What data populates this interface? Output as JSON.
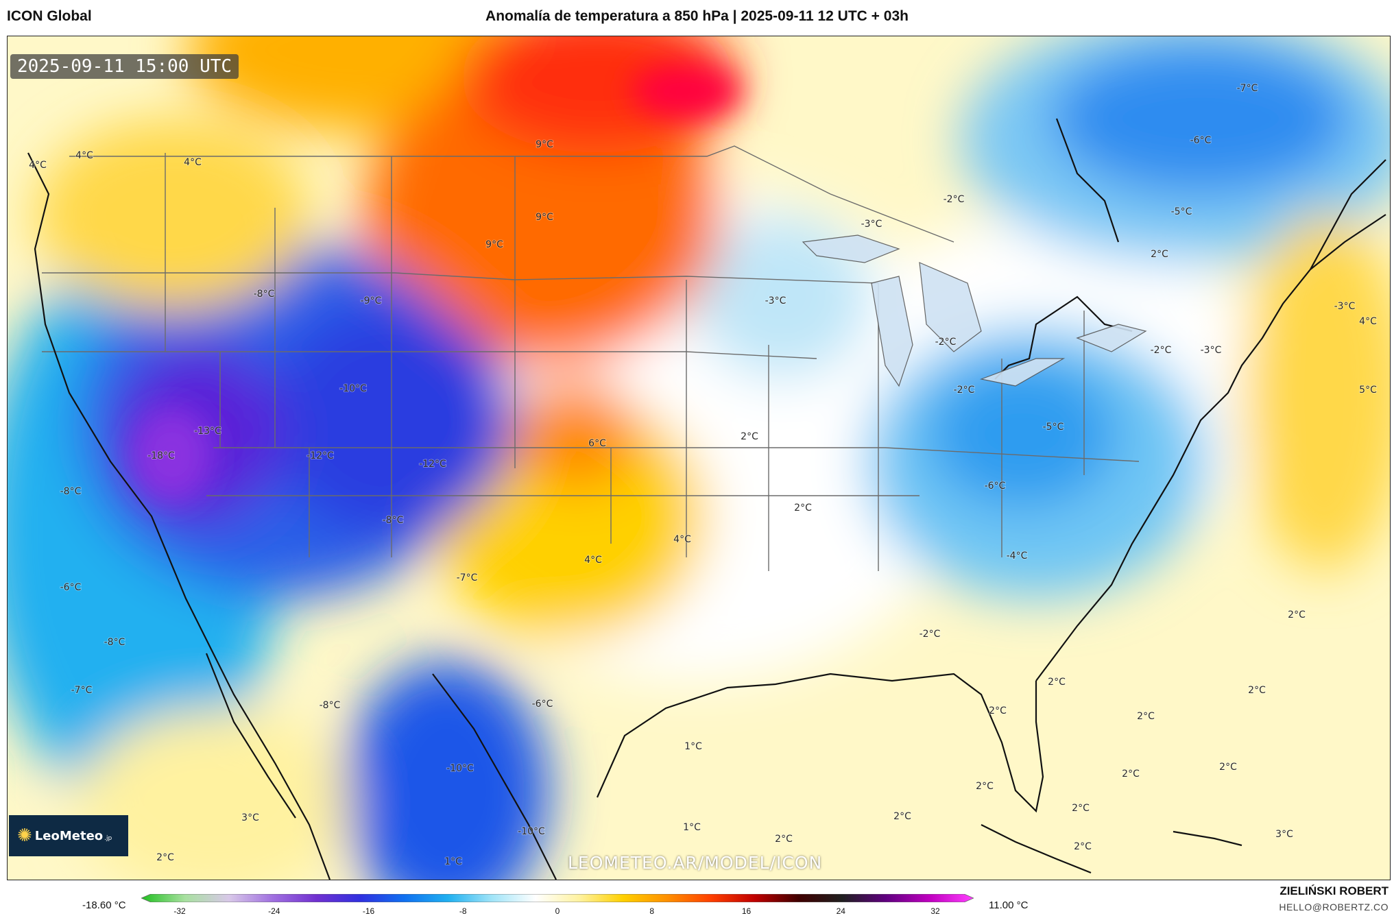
{
  "header": {
    "model": "ICON Global",
    "title": "Anomalía de temperatura a 850 hPa | 2025-09-11 12 UTC + 03h"
  },
  "map": {
    "timestamp": "2025-09-11 15:00 UTC",
    "logo": "LeoMeteo",
    "logo_suffix": ".jp",
    "watermark": "LEOMETEO.AR/MODEL/ICON",
    "labels": [
      {
        "text": "9°C"
      },
      {
        "text": "9°C"
      },
      {
        "text": "9°C"
      },
      {
        "text": "4°C"
      },
      {
        "text": "4°C"
      },
      {
        "text": "4°C"
      },
      {
        "text": "-8°C"
      },
      {
        "text": "-9°C"
      },
      {
        "text": "-10°C"
      },
      {
        "text": "-13°C"
      },
      {
        "text": "-18°C"
      },
      {
        "text": "-12°C"
      },
      {
        "text": "-12°C"
      },
      {
        "text": "-8°C"
      },
      {
        "text": "-8°C"
      },
      {
        "text": "-6°C"
      },
      {
        "text": "-8°C"
      },
      {
        "text": "-7°C"
      },
      {
        "text": "-7°C"
      },
      {
        "text": "-6°C"
      },
      {
        "text": "-8°C"
      },
      {
        "text": "-10°C"
      },
      {
        "text": "-10°C"
      },
      {
        "text": "6°C"
      },
      {
        "text": "2°C"
      },
      {
        "text": "2°C"
      },
      {
        "text": "4°C"
      },
      {
        "text": "4°C"
      },
      {
        "text": "-3°C"
      },
      {
        "text": "-3°C"
      },
      {
        "text": "-2°C"
      },
      {
        "text": "-2°C"
      },
      {
        "text": "-2°C"
      },
      {
        "text": "-5°C"
      },
      {
        "text": "-6°C"
      },
      {
        "text": "-4°C"
      },
      {
        "text": "-2°C"
      },
      {
        "text": "-2°C"
      },
      {
        "text": "-3°C"
      },
      {
        "text": "-3°C"
      },
      {
        "text": "2°C"
      },
      {
        "text": "-7°C"
      },
      {
        "text": "-6°C"
      },
      {
        "text": "-5°C"
      },
      {
        "text": "4°C"
      },
      {
        "text": "5°C"
      },
      {
        "text": "2°C"
      },
      {
        "text": "2°C"
      },
      {
        "text": "2°C"
      },
      {
        "text": "2°C"
      },
      {
        "text": "2°C"
      },
      {
        "text": "2°C"
      },
      {
        "text": "2°C"
      },
      {
        "text": "2°C"
      },
      {
        "text": "2°C"
      },
      {
        "text": "2°C"
      },
      {
        "text": "2°C"
      },
      {
        "text": "3°C"
      },
      {
        "text": "1°C"
      },
      {
        "text": "1°C"
      },
      {
        "text": "1°C"
      },
      {
        "text": "3°C"
      },
      {
        "text": "2°C"
      },
      {
        "text": "2°C"
      }
    ]
  },
  "colorbar": {
    "min_label": "-18.60 °C",
    "max_label": "11.00 °C",
    "ticks": [
      "-32",
      "-24",
      "-16",
      "-8",
      "0",
      "8",
      "16",
      "24",
      "32"
    ],
    "colors": [
      "#20c020",
      "#a8e0a0",
      "#d8c8e8",
      "#a070e0",
      "#7030d0",
      "#3030e0",
      "#1070f0",
      "#20b0f0",
      "#a0e4f8",
      "#ffffff",
      "#fff2a0",
      "#ffd000",
      "#ff9000",
      "#ff4000",
      "#c00000",
      "#400000",
      "#202020",
      "#600080",
      "#c000c0",
      "#ff40ff"
    ]
  },
  "footer": {
    "author": "ZIELIŃSKI ROBERT",
    "email": "HELLO@ROBERTZ.CO"
  }
}
